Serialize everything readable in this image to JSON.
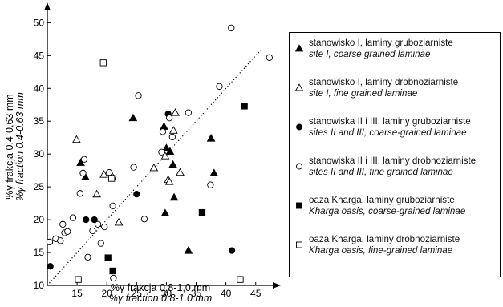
{
  "chart_data": {
    "type": "scatter",
    "xlabel": "%γ frakcja 0,8-1,0 mm",
    "xlabel_en": "%γ fraction 0.8-1.0 mm",
    "ylabel": "%γ frakcja 0,4-0,63 mm",
    "ylabel_en": "%γ fraction 0.4-0.63 mm",
    "xlim": [
      10,
      48
    ],
    "ylim": [
      10,
      52
    ],
    "xticks": [
      15,
      20,
      25,
      30,
      35,
      40,
      45
    ],
    "yticks": [
      10,
      15,
      20,
      25,
      30,
      35,
      40,
      45,
      50
    ],
    "grid": false,
    "legend_position": "right",
    "reference_line": {
      "style": "dotted",
      "x": [
        10,
        46
      ],
      "y": [
        10,
        46
      ]
    },
    "series": [
      {
        "name": "stanowisko I, laminy gruboziarniste",
        "name_en": "site I, coarse grained laminae",
        "marker": "triangle-filled",
        "points": [
          [
            15.6,
            28.7
          ],
          [
            16.4,
            26.5
          ],
          [
            24.4,
            35.5
          ],
          [
            29.6,
            34.2
          ],
          [
            29.8,
            21.0
          ],
          [
            30.0,
            30.9
          ],
          [
            30.6,
            30.4
          ],
          [
            31.1,
            28.4
          ],
          [
            31.3,
            23.4
          ],
          [
            33.7,
            15.3
          ],
          [
            37.5,
            32.4
          ],
          [
            38.0,
            27.1
          ]
        ]
      },
      {
        "name": "stanowisko I, laminy drobnoziarniste",
        "name_en": "site I, fine grained laminae",
        "marker": "triangle-open",
        "points": [
          [
            14.9,
            32.2
          ],
          [
            18.3,
            23.9
          ],
          [
            19.5,
            26.9
          ],
          [
            20.9,
            26.6
          ],
          [
            22.0,
            19.6
          ],
          [
            27.9,
            27.9
          ],
          [
            29.8,
            29.7
          ],
          [
            30.3,
            26.1
          ],
          [
            30.5,
            25.8
          ],
          [
            31.2,
            33.6
          ],
          [
            31.5,
            36.3
          ],
          [
            32.3,
            27.2
          ]
        ]
      },
      {
        "name": "stanowiska II i III, laminy gruboziarniste",
        "name_en": "sites II and III, coarse-grained laminae",
        "marker": "circle-filled",
        "points": [
          [
            10.5,
            12.9
          ],
          [
            16.5,
            20.0
          ],
          [
            17.9,
            20.0
          ],
          [
            25.0,
            23.9
          ],
          [
            30.3,
            36.1
          ],
          [
            41.0,
            15.3
          ]
        ]
      },
      {
        "name": "stanowiska II i III, laminy drobnoziarniste",
        "name_en": "sites II and III, fine grained laminae",
        "marker": "circle-open",
        "points": [
          [
            10.4,
            16.6
          ],
          [
            11.4,
            17.1
          ],
          [
            12.2,
            16.8
          ],
          [
            12.6,
            19.3
          ],
          [
            12.9,
            18.0
          ],
          [
            13.4,
            18.2
          ],
          [
            14.3,
            20.3
          ],
          [
            15.5,
            24.0
          ],
          [
            16.0,
            27.1
          ],
          [
            16.2,
            29.2
          ],
          [
            16.8,
            14.3
          ],
          [
            17.6,
            18.3
          ],
          [
            18.5,
            19.3
          ],
          [
            19.0,
            16.4
          ],
          [
            19.6,
            18.9
          ],
          [
            20.4,
            27.2
          ],
          [
            21.0,
            22.1
          ],
          [
            21.1,
            11.1
          ],
          [
            24.5,
            28.0
          ],
          [
            25.3,
            38.9
          ],
          [
            26.3,
            20.1
          ],
          [
            29.2,
            30.3
          ],
          [
            29.4,
            33.4
          ],
          [
            30.5,
            35.5
          ],
          [
            31.0,
            32.6
          ],
          [
            33.7,
            36.3
          ],
          [
            37.4,
            25.3
          ],
          [
            38.9,
            40.3
          ],
          [
            40.9,
            49.2
          ],
          [
            47.3,
            44.7
          ]
        ]
      },
      {
        "name": "oaza Kharga, laminy gruboziarniste",
        "name_en": "Kharga oasis, coarse-grained laminae",
        "marker": "square-filled",
        "points": [
          [
            20.2,
            14.2
          ],
          [
            21.0,
            12.2
          ],
          [
            36.0,
            21.1
          ],
          [
            43.1,
            37.3
          ]
        ]
      },
      {
        "name": "oaza Kharga, laminy drobnoziarniste",
        "name_en": "Kharga oasis, fine-grained laminae",
        "marker": "square-open",
        "points": [
          [
            15.2,
            10.9
          ],
          [
            19.4,
            43.9
          ],
          [
            20.8,
            26.3
          ],
          [
            42.4,
            10.9
          ]
        ]
      }
    ]
  }
}
